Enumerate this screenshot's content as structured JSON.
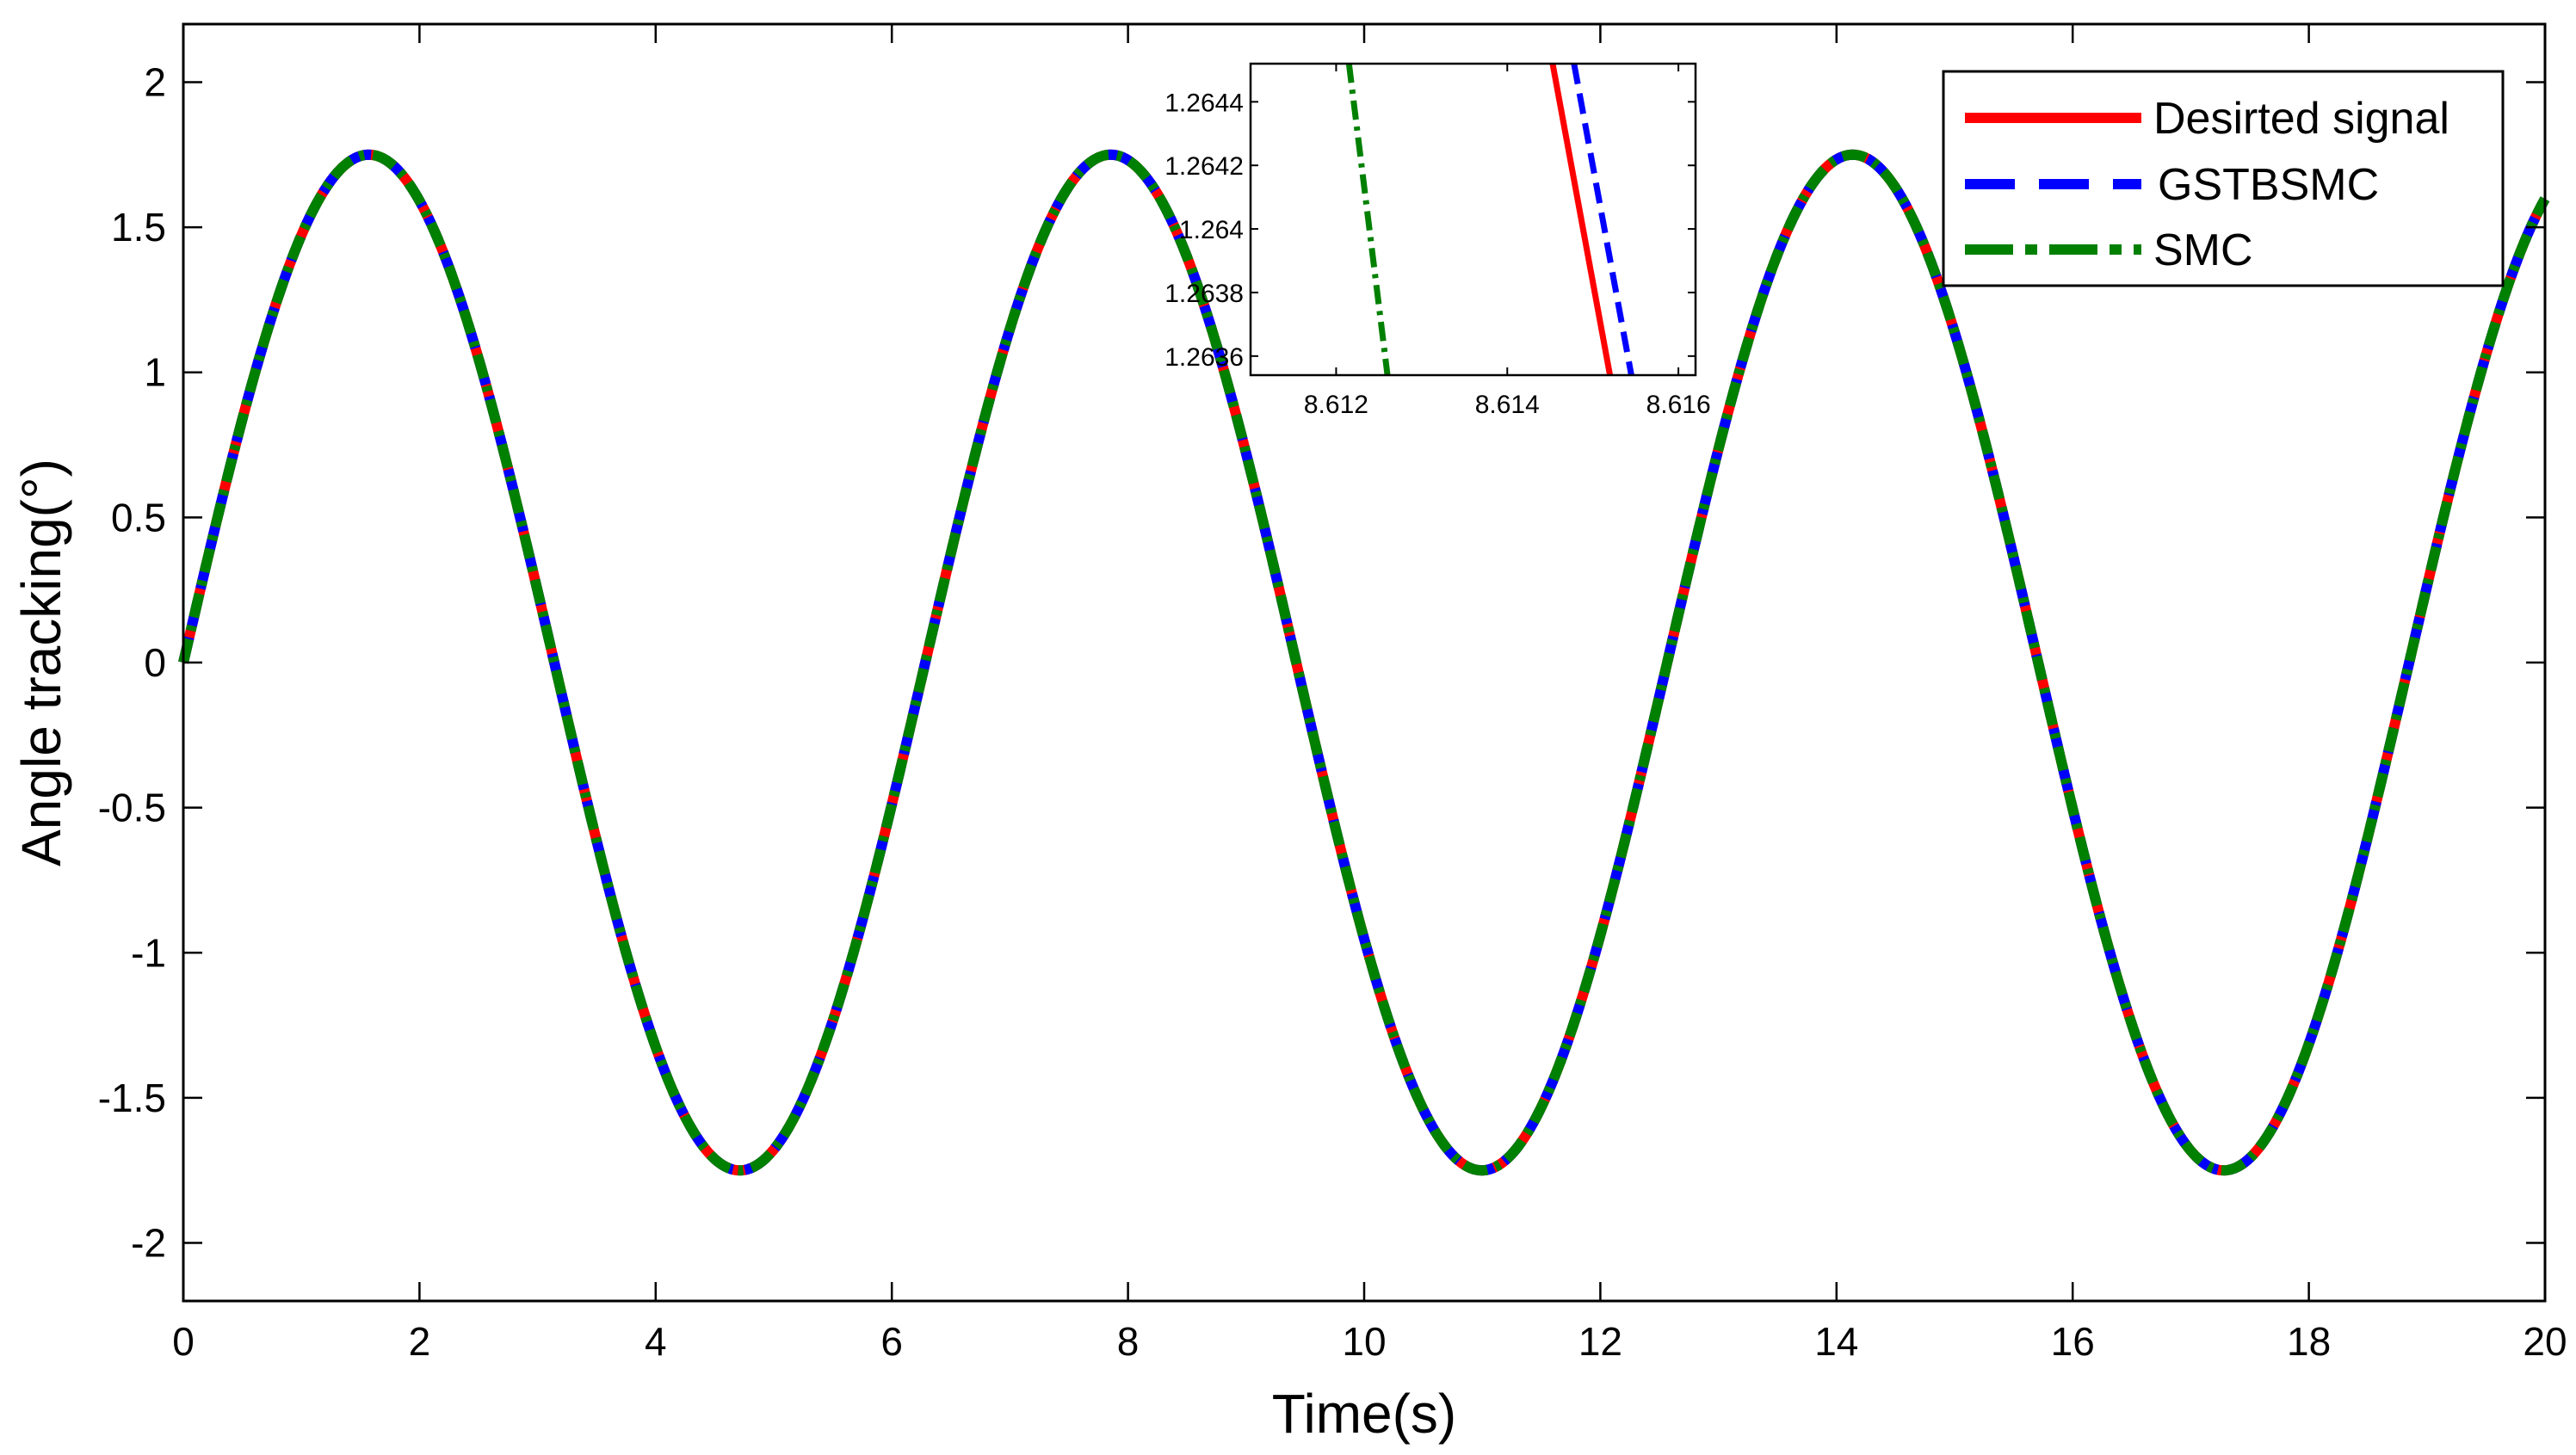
{
  "chart_data": [
    {
      "type": "line",
      "title": "",
      "xlabel": "Time(s)",
      "ylabel": "Angle tracking(°)",
      "xlim": [
        0,
        20
      ],
      "ylim": [
        -2.2,
        2.2
      ],
      "x_ticks": [
        0,
        2,
        4,
        6,
        8,
        10,
        12,
        14,
        16,
        18,
        20
      ],
      "x_tick_labels": [
        "0",
        "2",
        "4",
        "6",
        "8",
        "10",
        "12",
        "14",
        "16",
        "18",
        "20"
      ],
      "y_ticks": [
        -2,
        -1.5,
        -1,
        -0.5,
        0,
        0.5,
        1,
        1.5,
        2
      ],
      "y_tick_labels": [
        "-2",
        "-1.5",
        "-1",
        "-0.5",
        "0",
        "0.5",
        "1",
        "1.5",
        "2"
      ],
      "grid": false,
      "legend_position": "top-right",
      "x": [
        0,
        1.571,
        4.712,
        7.854,
        10.996,
        14.137,
        17.279,
        20
      ],
      "series": [
        {
          "name": "Desirted signal",
          "color": "#ff0000",
          "style": "solid",
          "amplitude": 1.75,
          "frequency_rad_per_s": 1.0,
          "values": [
            0,
            1.75,
            -1.75,
            1.75,
            -1.75,
            1.75,
            -1.75,
            1.59
          ]
        },
        {
          "name": "GSTBSMC",
          "color": "#0000ff",
          "style": "dashed",
          "amplitude": 1.75,
          "frequency_rad_per_s": 1.0,
          "values": [
            0,
            1.75,
            -1.75,
            1.75,
            -1.75,
            1.75,
            -1.75,
            1.59
          ]
        },
        {
          "name": "SMC",
          "color": "#008000",
          "style": "dash-dot",
          "amplitude": 1.75,
          "frequency_rad_per_s": 1.0,
          "values": [
            0,
            1.75,
            -1.75,
            1.75,
            -1.75,
            1.75,
            -1.75,
            1.59
          ]
        }
      ]
    },
    {
      "type": "line",
      "title": "",
      "xlabel": "",
      "ylabel": "",
      "xlim": [
        8.611,
        8.6162
      ],
      "ylim": [
        1.26354,
        1.26452
      ],
      "x_ticks": [
        8.612,
        8.614,
        8.616
      ],
      "x_tick_labels": [
        "8.612",
        "8.614",
        "8.616"
      ],
      "y_ticks": [
        1.2636,
        1.2638,
        1.264,
        1.2642,
        1.2644
      ],
      "y_tick_labels": [
        "1.2636",
        "1.2638",
        "1.264",
        "1.2642",
        "1.2644"
      ],
      "grid": false,
      "series": [
        {
          "name": "Desirted signal",
          "color": "#ff0000",
          "style": "solid",
          "x": [
            8.61453,
            8.6152
          ],
          "values": [
            1.26452,
            1.26354
          ]
        },
        {
          "name": "GSTBSMC",
          "color": "#0000ff",
          "style": "dashed",
          "x": [
            8.61478,
            8.61545
          ],
          "values": [
            1.26452,
            1.26354
          ]
        },
        {
          "name": "SMC",
          "color": "#008000",
          "style": "dash-dot",
          "x": [
            8.61215,
            8.6126
          ],
          "values": [
            1.26452,
            1.26354
          ]
        }
      ]
    }
  ]
}
